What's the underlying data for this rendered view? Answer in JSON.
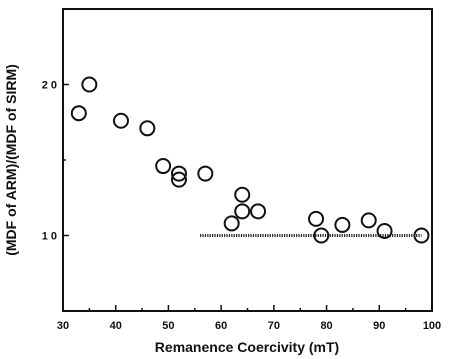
{
  "chart_data": {
    "type": "scatter",
    "xlabel": "Remanence Coercivity (mT)",
    "ylabel": "(MDF of ARM)/(MDF of SIRM)",
    "xlim": [
      30,
      100
    ],
    "ylim": [
      0.5,
      2.5
    ],
    "x_ticks": [
      30,
      40,
      50,
      60,
      70,
      80,
      90,
      100
    ],
    "x_tick_labels": [
      "30",
      "40",
      "50",
      "60",
      "70",
      "80",
      "90",
      "100"
    ],
    "y_ticks": [
      1.0,
      2.0
    ],
    "y_tick_labels": [
      "1 0",
      "2 0"
    ],
    "grid": false,
    "legend": "none",
    "points": [
      {
        "x": 33,
        "y": 1.81
      },
      {
        "x": 35,
        "y": 2.0
      },
      {
        "x": 41,
        "y": 1.76
      },
      {
        "x": 46,
        "y": 1.71
      },
      {
        "x": 49,
        "y": 1.46
      },
      {
        "x": 52,
        "y": 1.37
      },
      {
        "x": 52,
        "y": 1.41
      },
      {
        "x": 57,
        "y": 1.41
      },
      {
        "x": 62,
        "y": 1.08
      },
      {
        "x": 64,
        "y": 1.27
      },
      {
        "x": 64,
        "y": 1.16
      },
      {
        "x": 67,
        "y": 1.16
      },
      {
        "x": 78,
        "y": 1.11
      },
      {
        "x": 79,
        "y": 1.0
      },
      {
        "x": 83,
        "y": 1.07
      },
      {
        "x": 88,
        "y": 1.1
      },
      {
        "x": 91,
        "y": 1.03
      },
      {
        "x": 98,
        "y": 1.0
      }
    ],
    "reference_line": {
      "x_start": 56,
      "x_end": 98,
      "y": 1.0
    }
  }
}
